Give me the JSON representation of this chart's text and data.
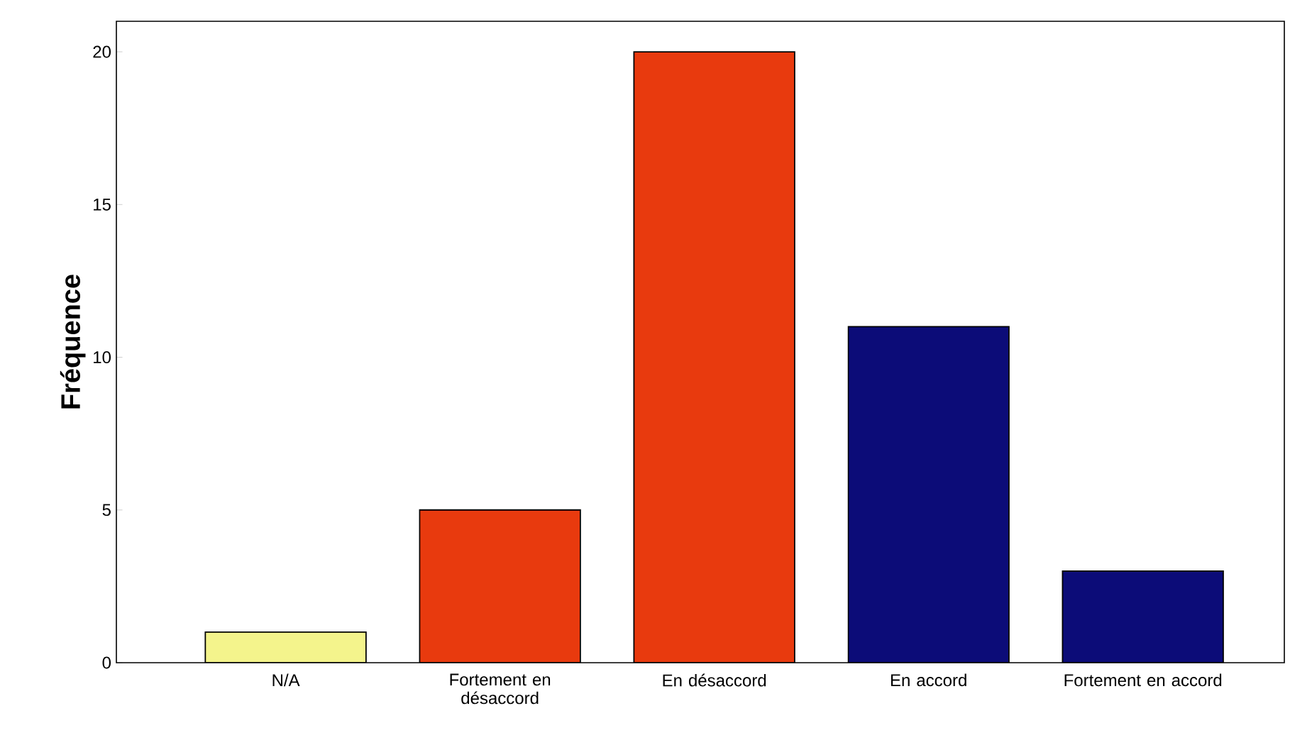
{
  "chart_data": {
    "type": "bar",
    "ylabel": "Fréquence",
    "categories": [
      "N/A",
      "Fortement en désaccord",
      "En désaccord",
      "En accord",
      "Fortement en accord"
    ],
    "values": [
      1,
      5,
      20,
      11,
      3
    ],
    "colors": [
      "#f4f48c",
      "#e83a0e",
      "#e83a0e",
      "#0c0c78",
      "#0c0c78"
    ],
    "ylim": [
      0,
      21
    ],
    "yticks": [
      0,
      5,
      10,
      15,
      20
    ],
    "grid": false
  }
}
